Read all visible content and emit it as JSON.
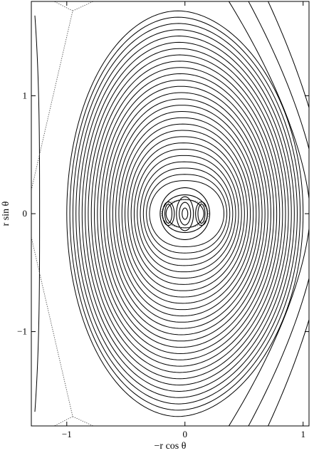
{
  "chart_data": {
    "type": "contour",
    "xlabel": "−r cos θ",
    "ylabel": "r sin θ",
    "xlim": [
      -1.3,
      1.05
    ],
    "ylim": [
      -1.8,
      1.8
    ],
    "x_ticks": [
      {
        "value": -1,
        "label": "−1"
      },
      {
        "value": 0,
        "label": "0"
      },
      {
        "value": 1,
        "label": "1"
      }
    ],
    "y_ticks": [
      {
        "value": -1,
        "label": "−1"
      },
      {
        "value": 0,
        "label": "0"
      },
      {
        "value": 1,
        "label": "1"
      }
    ],
    "grid": false,
    "outer_closed_contours": {
      "count": 28,
      "center": [
        0,
        0
      ],
      "right_extent_range": [
        0.33,
        1.0
      ],
      "left_extent_range": [
        -0.3,
        -1.0
      ],
      "vertical_extent_range": [
        0.28,
        1.72
      ]
    },
    "open_contours": [
      {
        "side": "right",
        "x_at_center": 1.06,
        "x_at_top": 0.42
      },
      {
        "side": "right",
        "x_at_center": 1.14,
        "x_at_top": 0.58
      },
      {
        "side": "right",
        "x_at_center": 1.22,
        "x_at_top": 0.74
      },
      {
        "side": "left",
        "x_inner": -1.23,
        "x_at_top": -1.27,
        "y_tip": 1.68
      }
    ],
    "separatrix": {
      "style": "dotted",
      "x_point": [
        -0.95,
        1.72
      ],
      "left_edge_point": [
        -1.3,
        0.0
      ]
    },
    "inner_structure": {
      "center_closed_contours": [
        0.03,
        0.06,
        0.09
      ],
      "nested_contours": [
        {
          "x_half_width": 0.16,
          "y_half_height": 0.12
        },
        {
          "x_half_width": 0.19,
          "y_half_height": 0.16
        },
        {
          "x_half_width": 0.21,
          "y_half_height": 0.22
        }
      ],
      "side_islands": [
        {
          "center": [
            -0.14,
            0
          ],
          "half_width": 0.03,
          "half_height": 0.08
        },
        {
          "center": [
            0.14,
            0
          ],
          "half_width": 0.03,
          "half_height": 0.08
        },
        {
          "center": [
            -0.14,
            0
          ],
          "half_width": 0.05,
          "half_height": 0.1
        },
        {
          "center": [
            0.14,
            0
          ],
          "half_width": 0.05,
          "half_height": 0.1
        }
      ],
      "inner_separatrix": {
        "style": "dotted",
        "half_width": 0.2,
        "half_height": 0.12
      }
    }
  }
}
